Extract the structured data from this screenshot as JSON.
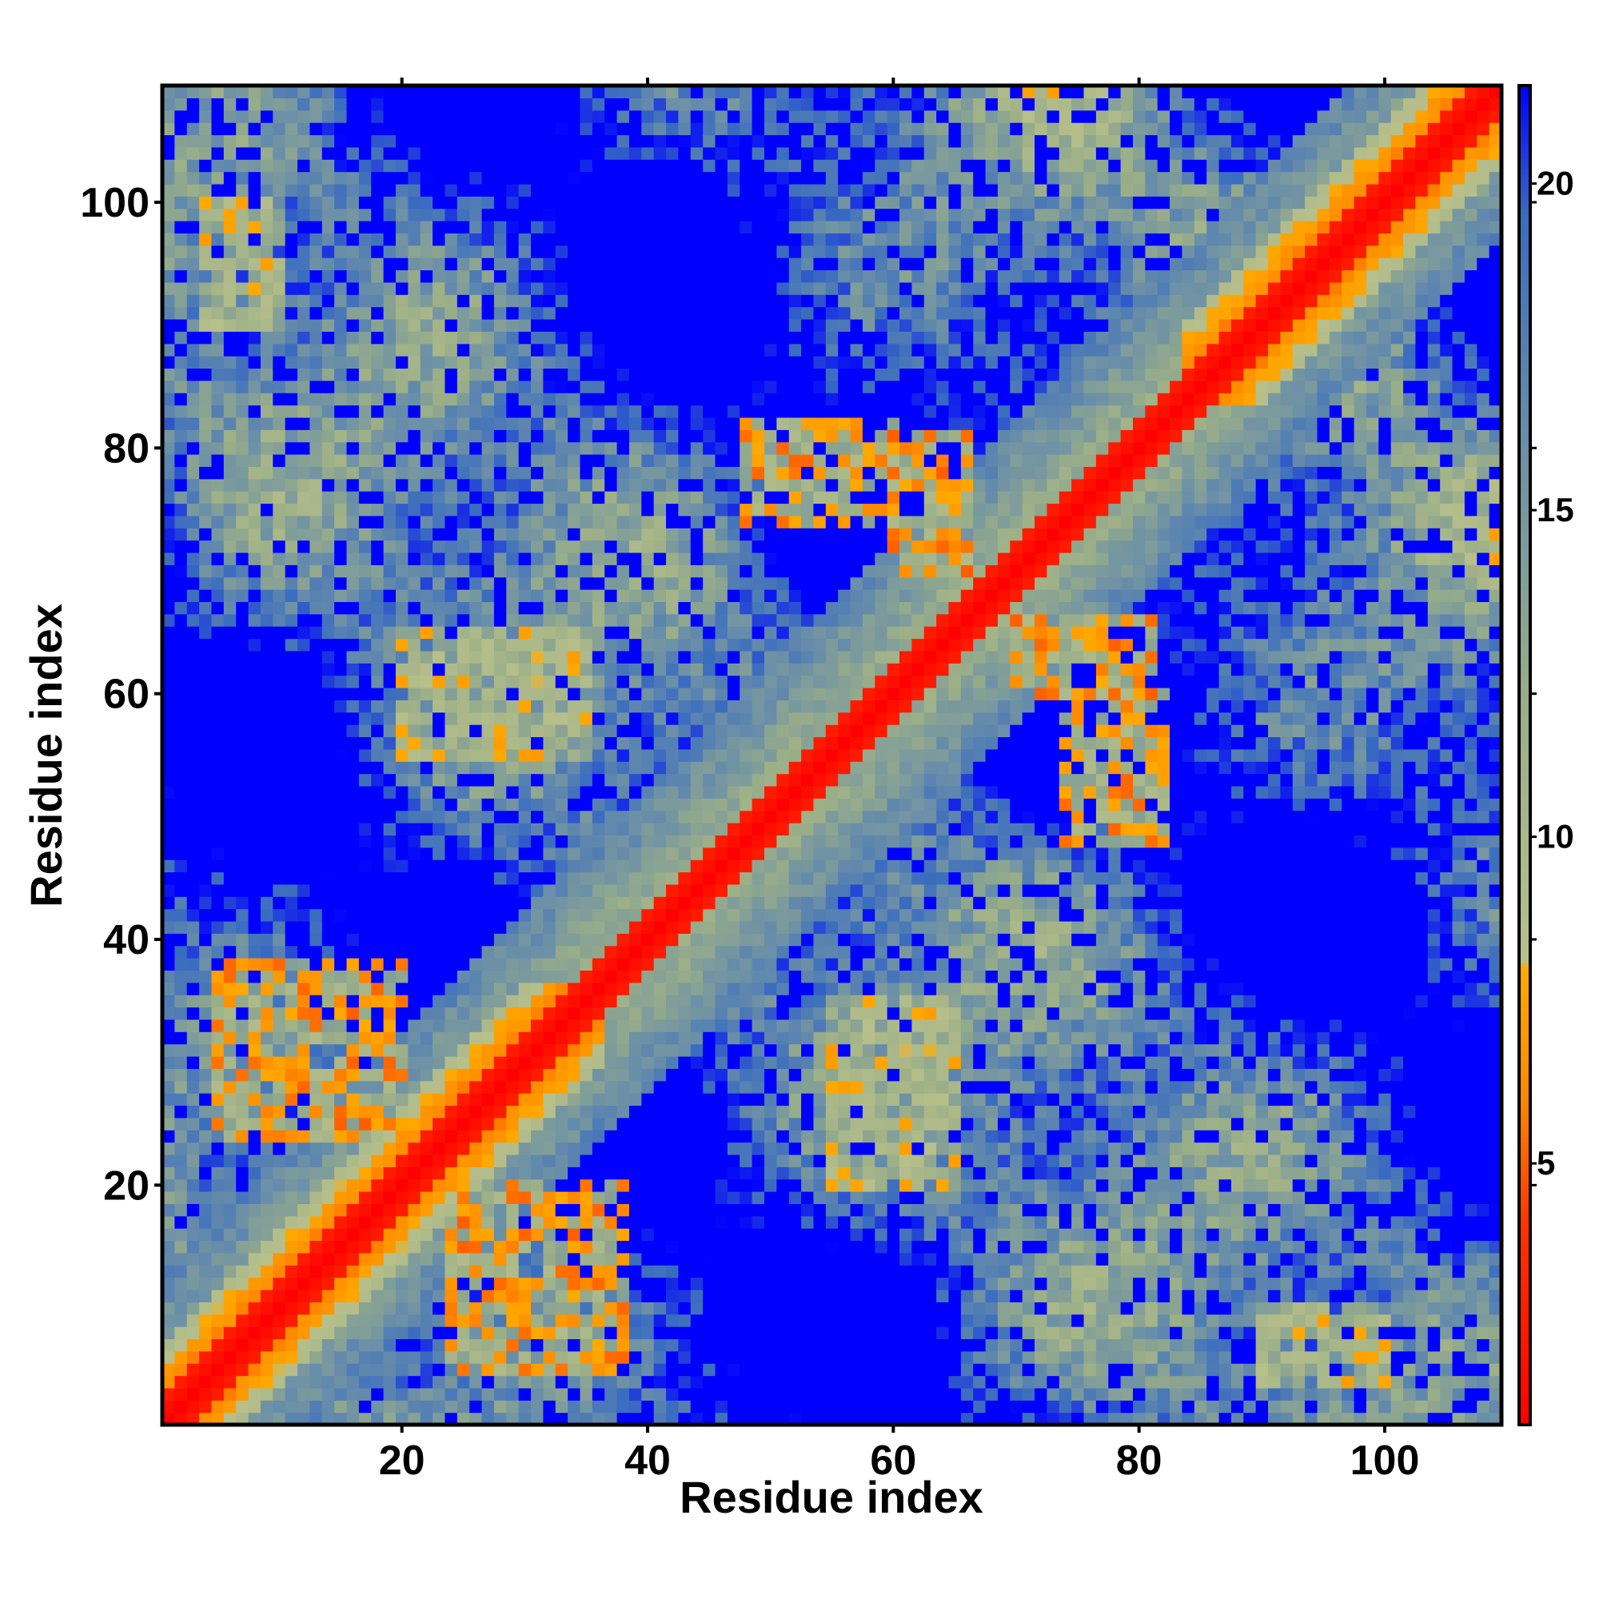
{
  "chart_data": {
    "type": "heatmap",
    "title": "",
    "xlabel": "Residue index",
    "ylabel": "Residue index",
    "n_residues": 109,
    "xlim": [
      1,
      109
    ],
    "ylim": [
      1,
      109
    ],
    "x_ticks": [
      20,
      40,
      60,
      80,
      100
    ],
    "y_ticks": [
      20,
      40,
      60,
      80,
      100
    ],
    "colorbar": {
      "range": [
        1,
        21.5
      ],
      "ticks": [
        5,
        10,
        15,
        20
      ],
      "colors": [
        {
          "value": 1,
          "color": "#ff0000"
        },
        {
          "value": 4,
          "color": "#ff3300"
        },
        {
          "value": 6,
          "color": "#ff8800"
        },
        {
          "value": 8,
          "color": "#ffaa00"
        },
        {
          "value": 8.1,
          "color": "#b8c08a"
        },
        {
          "value": 12,
          "color": "#9aae88"
        },
        {
          "value": 16,
          "color": "#6a8fa8"
        },
        {
          "value": 19.5,
          "color": "#3a6cc0"
        },
        {
          "value": 21.5,
          "color": "#0000ff"
        }
      ]
    },
    "grid": false,
    "symmetric": true,
    "secondary_structure": {
      "helix_diagonal_bands": [
        [
          1,
          36
        ],
        [
          84,
          109
        ]
      ],
      "loops_between": [
        [
          36,
          84
        ]
      ]
    },
    "contact_patches": [
      {
        "i_range": [
          5,
          20
        ],
        "j_range": [
          24,
          38
        ],
        "min_distance": 5
      },
      {
        "i_range": [
          48,
          60
        ],
        "j_range": [
          74,
          82
        ],
        "min_distance": 5
      },
      {
        "i_range": [
          60,
          66
        ],
        "j_range": [
          70,
          81
        ],
        "min_distance": 5
      },
      {
        "i_range": [
          66,
          78
        ],
        "j_range": [
          60,
          70
        ],
        "min_distance": 6
      },
      {
        "i_range": [
          4,
          10
        ],
        "j_range": [
          90,
          100
        ],
        "min_distance": 7
      },
      {
        "i_range": [
          20,
          35
        ],
        "j_range": [
          55,
          65
        ],
        "min_distance": 7
      }
    ]
  }
}
